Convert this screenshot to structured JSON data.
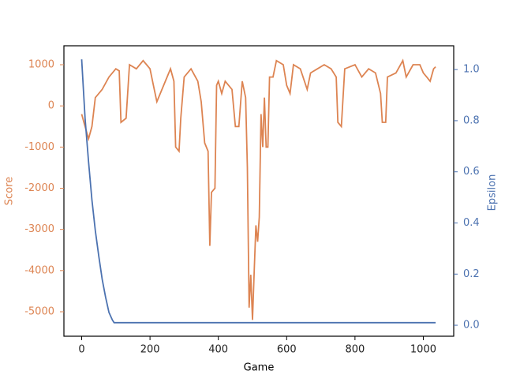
{
  "chart_data": {
    "type": "line",
    "xlabel": "Game",
    "ylabel": "Score",
    "y2label": "Epsilon",
    "xlim": [
      -52,
      1089
    ],
    "xticks": [
      0,
      200,
      400,
      600,
      800,
      1000
    ],
    "ylim": [
      -5594,
      1460
    ],
    "yticks": [
      -5000,
      -4000,
      -3000,
      -2000,
      -1000,
      0,
      1000
    ],
    "y2lim": [
      -0.043,
      1.093
    ],
    "y2ticks": [
      {
        "value": 0,
        "label": "0.0"
      },
      {
        "value": 0.2,
        "label": "0.2"
      },
      {
        "value": 0.4,
        "label": "0.4"
      },
      {
        "value": 0.6,
        "label": "0.6"
      },
      {
        "value": 0.8,
        "label": "0.8"
      },
      {
        "value": 1,
        "label": "1.0"
      }
    ],
    "series": [
      {
        "name": "Score",
        "color": "#dd8452",
        "x": [
          0,
          10,
          20,
          30,
          40,
          60,
          80,
          100,
          110,
          115,
          130,
          140,
          160,
          180,
          200,
          210,
          220,
          240,
          260,
          270,
          275,
          285,
          290,
          300,
          320,
          340,
          350,
          360,
          370,
          375,
          380,
          390,
          395,
          400,
          410,
          420,
          440,
          450,
          460,
          470,
          480,
          485,
          490,
          495,
          500,
          505,
          510,
          515,
          520,
          525,
          530,
          535,
          540,
          545,
          550,
          560,
          570,
          590,
          600,
          610,
          620,
          640,
          660,
          670,
          690,
          710,
          730,
          745,
          750,
          760,
          770,
          800,
          820,
          840,
          860,
          875,
          880,
          890,
          895,
          920,
          940,
          950,
          970,
          990,
          1000,
          1010,
          1020,
          1030,
          1036
        ],
        "values": [
          -200,
          -500,
          -800,
          -500,
          200,
          400,
          700,
          900,
          850,
          -400,
          -300,
          1000,
          900,
          1100,
          900,
          500,
          100,
          500,
          900,
          600,
          -1000,
          -1100,
          -300,
          700,
          900,
          600,
          100,
          -900,
          -1100,
          -3400,
          -2100,
          -2000,
          500,
          600,
          300,
          600,
          400,
          -500,
          -500,
          600,
          200,
          -1500,
          -4900,
          -4100,
          -5200,
          -4000,
          -2900,
          -3300,
          -2700,
          -200,
          -1000,
          200,
          -1000,
          -1000,
          700,
          700,
          1100,
          1000,
          500,
          300,
          1000,
          900,
          400,
          800,
          900,
          1000,
          900,
          700,
          -400,
          -500,
          900,
          1000,
          700,
          900,
          800,
          300,
          -400,
          -400,
          700,
          800,
          1100,
          700,
          1000,
          1000,
          800,
          700,
          600,
          900,
          950
        ]
      },
      {
        "name": "Epsilon",
        "color": "#4c72b0",
        "axis": "y2",
        "x": [
          0,
          10,
          20,
          30,
          40,
          50,
          60,
          70,
          80,
          90,
          95,
          1036
        ],
        "values": [
          1.04,
          0.81,
          0.64,
          0.49,
          0.37,
          0.27,
          0.18,
          0.11,
          0.05,
          0.02,
          0.01,
          0.01
        ]
      }
    ]
  }
}
